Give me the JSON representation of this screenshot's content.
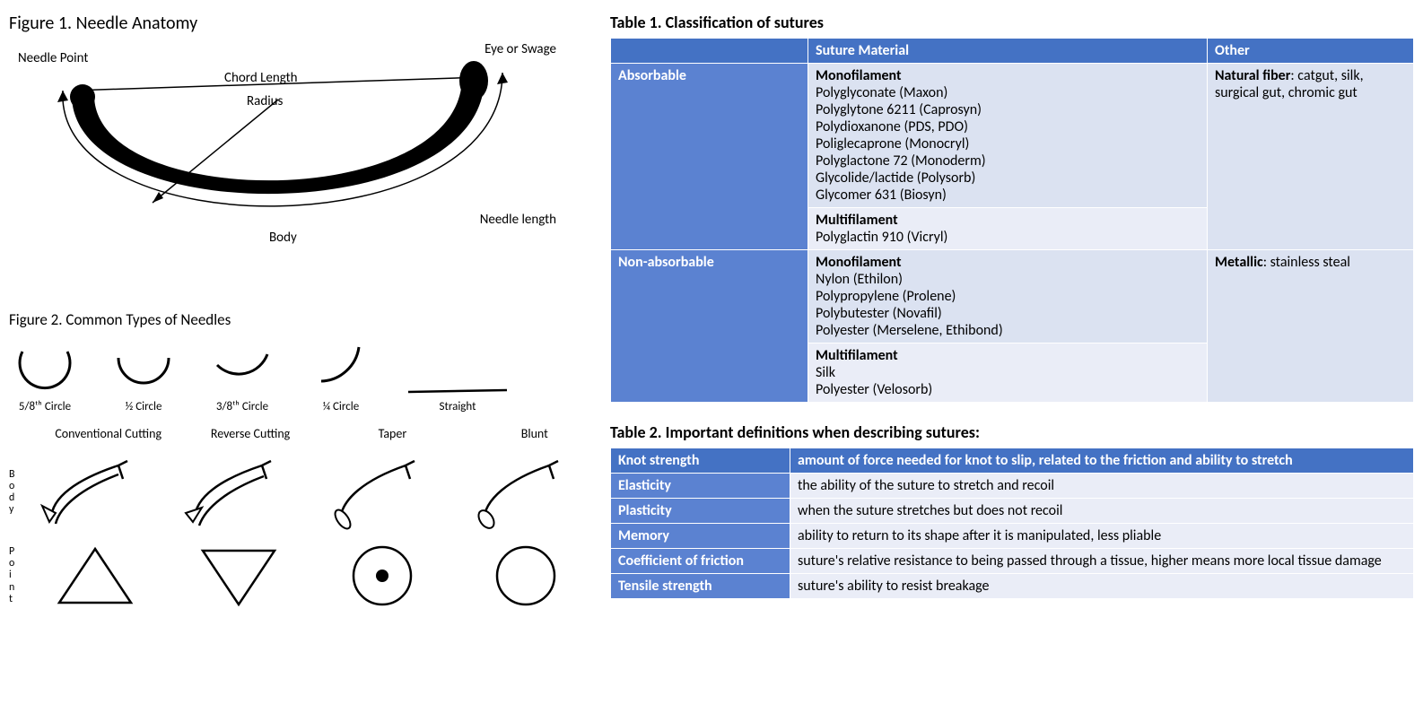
{
  "colors": {
    "header_bg": "#4472c4",
    "rowlabel_bg": "#5b82d1",
    "cell_light": "#dbe2f1",
    "cell_lighter": "#eaedf7",
    "white": "#ffffff",
    "black": "#000000"
  },
  "figure1": {
    "title": "Figure 1. Needle Anatomy",
    "labels": {
      "needle_point": "Needle Point",
      "eye_swage": "Eye or Swage",
      "chord_length": "Chord Length",
      "radius": "Radius",
      "body": "Body",
      "needle_length": "Needle length"
    }
  },
  "figure2": {
    "title": "Figure 2. Common Types of Needles",
    "circle_labels": [
      "5/8ᵗʰ Circle",
      "½ Circle",
      "3/8ᵗʰ Circle",
      "¼ Circle",
      "Straight"
    ],
    "tip_labels": [
      "Conventional Cutting",
      "Reverse Cutting",
      "Taper",
      "Blunt"
    ],
    "side_body": "Body",
    "side_point": "Point"
  },
  "table1": {
    "title": "Table 1.  Classification of sutures",
    "headers": [
      "",
      "Suture Material",
      "Other"
    ],
    "rows": [
      {
        "label": "Absorbable",
        "material": [
          {
            "sub": "Monofilament",
            "items": [
              "Polyglyconate (Maxon)",
              "Polyglytone 6211 (Caprosyn)",
              "Polydioxanone (PDS, PDO)",
              "Poliglecaprone (Monocryl)",
              "Polyglactone 72 (Monoderm)",
              "Glycolide/lactide (Polysorb)",
              "Glycomer 631 (Biosyn)"
            ]
          },
          {
            "sub": "Multifilament",
            "items": [
              "Polyglactin 910 (Vicryl)"
            ]
          }
        ],
        "other_bold": "Natural fiber",
        "other_rest": ": catgut, silk, surgical gut, chromic gut"
      },
      {
        "label": "Non-absorbable",
        "material": [
          {
            "sub": "Monofilament",
            "items": [
              "Nylon  (Ethilon)",
              "Polypropylene (Prolene)",
              "Polybutester (Novafil)",
              "Polyester (Merselene, Ethibond)"
            ]
          },
          {
            "sub": "Multifilament",
            "items": [
              "Silk",
              "Polyester (Velosorb)"
            ]
          }
        ],
        "other_bold": "Metallic",
        "other_rest": ": stainless steal"
      }
    ]
  },
  "table2": {
    "title": "Table 2. Important definitions when describing sutures:",
    "rows": [
      {
        "term": "Knot strength",
        "def": "amount of force needed for knot to slip, related to the friction and ability to stretch"
      },
      {
        "term": "Elasticity",
        "def": "the ability of the suture to stretch and recoil"
      },
      {
        "term": "Plasticity",
        "def": "when the suture stretches but does not recoil"
      },
      {
        "term": "Memory",
        "def": "ability to return to its shape after it is manipulated, less pliable"
      },
      {
        "term": "Coefficient of friction",
        "def": "suture's relative resistance to being passed through a tissue, higher means more local tissue damage"
      },
      {
        "term": "Tensile strength",
        "def": "suture's ability to resist breakage"
      }
    ]
  }
}
